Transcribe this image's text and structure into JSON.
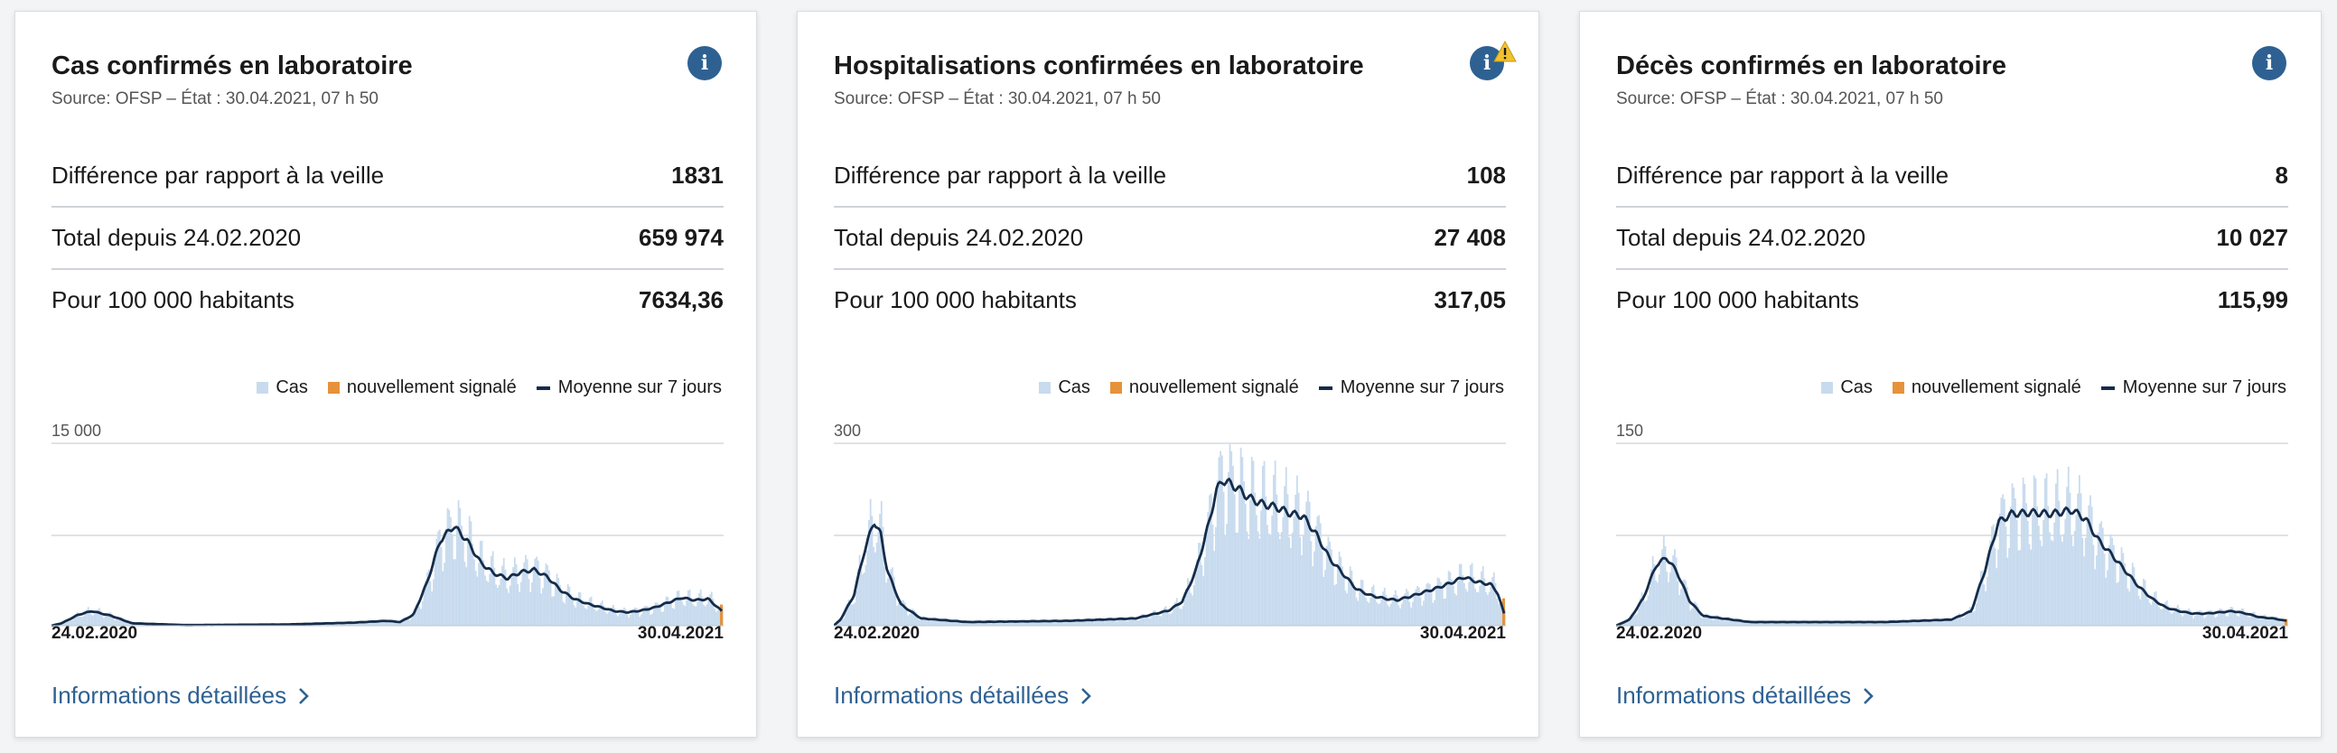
{
  "legend": {
    "cases": "Cas",
    "new": "nouvellement signalé",
    "avg": "Moyenne sur 7 jours"
  },
  "colors": {
    "bars": "#c8dbee",
    "new": "#e6923a",
    "avg": "#152c4a",
    "link": "#2e6192",
    "info": "#2e6192",
    "warning": "#f2c12e"
  },
  "cards": [
    {
      "title": "Cas confirmés en laboratoire",
      "source": "Source: OFSP – État : 30.04.2021, 07 h 50",
      "stats": [
        {
          "label": "Différence par rapport à la veille",
          "value": "1831"
        },
        {
          "label": "Total depuis 24.02.2020",
          "value": "659 974"
        },
        {
          "label": "Pour 100 000 habitants",
          "value": "7634,36"
        }
      ],
      "link": "Informations détaillées",
      "warning": false,
      "info_icon": "info-icon",
      "chart_data": {
        "type": "area",
        "series_names": [
          "Cas",
          "nouvellement signalé",
          "Moyenne sur 7 jours"
        ],
        "ymax_label": "15 000",
        "ylim": [
          0,
          15000
        ],
        "x_start_label": "24.02.2020",
        "x_end_label": "30.04.2021",
        "avg_points": [
          [
            0,
            0
          ],
          [
            0.015,
            200
          ],
          [
            0.04,
            900
          ],
          [
            0.06,
            1200
          ],
          [
            0.09,
            800
          ],
          [
            0.12,
            200
          ],
          [
            0.2,
            50
          ],
          [
            0.35,
            100
          ],
          [
            0.45,
            250
          ],
          [
            0.5,
            400
          ],
          [
            0.52,
            300
          ],
          [
            0.54,
            900
          ],
          [
            0.56,
            3500
          ],
          [
            0.58,
            7000
          ],
          [
            0.6,
            8200
          ],
          [
            0.62,
            7000
          ],
          [
            0.64,
            5200
          ],
          [
            0.66,
            4300
          ],
          [
            0.68,
            3900
          ],
          [
            0.7,
            4400
          ],
          [
            0.72,
            4600
          ],
          [
            0.74,
            4000
          ],
          [
            0.76,
            2900
          ],
          [
            0.78,
            2200
          ],
          [
            0.8,
            1800
          ],
          [
            0.82,
            1500
          ],
          [
            0.84,
            1200
          ],
          [
            0.86,
            1100
          ],
          [
            0.88,
            1250
          ],
          [
            0.9,
            1500
          ],
          [
            0.92,
            1900
          ],
          [
            0.94,
            2300
          ],
          [
            0.96,
            2100
          ],
          [
            0.98,
            2200
          ],
          [
            1,
            1200
          ]
        ]
      }
    },
    {
      "title": "Hospitalisations confirmées en laboratoire",
      "source": "Source: OFSP – État : 30.04.2021, 07 h 50",
      "stats": [
        {
          "label": "Différence par rapport à la veille",
          "value": "108"
        },
        {
          "label": "Total depuis 24.02.2020",
          "value": "27 408"
        },
        {
          "label": "Pour 100 000 habitants",
          "value": "317,05"
        }
      ],
      "link": "Informations détaillées",
      "warning": true,
      "info_icon": "info-icon",
      "chart_data": {
        "type": "area",
        "series_names": [
          "Cas",
          "nouvellement signalé",
          "Moyenne sur 7 jours"
        ],
        "ymax_label": "300",
        "ylim": [
          0,
          300
        ],
        "x_start_label": "24.02.2020",
        "x_end_label": "30.04.2021",
        "avg_points": [
          [
            0,
            0
          ],
          [
            0.01,
            10
          ],
          [
            0.03,
            50
          ],
          [
            0.045,
            120
          ],
          [
            0.06,
            172
          ],
          [
            0.07,
            150
          ],
          [
            0.08,
            90
          ],
          [
            0.1,
            35
          ],
          [
            0.13,
            12
          ],
          [
            0.2,
            6
          ],
          [
            0.35,
            8
          ],
          [
            0.45,
            12
          ],
          [
            0.5,
            25
          ],
          [
            0.52,
            40
          ],
          [
            0.54,
            90
          ],
          [
            0.56,
            170
          ],
          [
            0.57,
            220
          ],
          [
            0.58,
            240
          ],
          [
            0.6,
            228
          ],
          [
            0.62,
            210
          ],
          [
            0.64,
            200
          ],
          [
            0.66,
            195
          ],
          [
            0.68,
            185
          ],
          [
            0.7,
            180
          ],
          [
            0.72,
            150
          ],
          [
            0.74,
            110
          ],
          [
            0.76,
            85
          ],
          [
            0.78,
            60
          ],
          [
            0.8,
            50
          ],
          [
            0.82,
            45
          ],
          [
            0.84,
            42
          ],
          [
            0.86,
            48
          ],
          [
            0.88,
            55
          ],
          [
            0.9,
            62
          ],
          [
            0.92,
            70
          ],
          [
            0.94,
            80
          ],
          [
            0.96,
            72
          ],
          [
            0.98,
            68
          ],
          [
            0.99,
            55
          ],
          [
            1,
            20
          ]
        ]
      }
    },
    {
      "title": "Décès confirmés en laboratoire",
      "source": "Source: OFSP – État : 30.04.2021, 07 h 50",
      "stats": [
        {
          "label": "Différence par rapport à la veille",
          "value": "8"
        },
        {
          "label": "Total depuis 24.02.2020",
          "value": "10 027"
        },
        {
          "label": "Pour 100 000 habitants",
          "value": "115,99"
        }
      ],
      "link": "Informations détaillées",
      "warning": false,
      "info_icon": "info-icon",
      "chart_data": {
        "type": "area",
        "series_names": [
          "Cas",
          "nouvellement signalé",
          "Moyenne sur 7 jours"
        ],
        "ymax_label": "150",
        "ylim": [
          0,
          150
        ],
        "x_start_label": "24.02.2020",
        "x_end_label": "30.04.2021",
        "avg_points": [
          [
            0,
            0
          ],
          [
            0.02,
            5
          ],
          [
            0.04,
            22
          ],
          [
            0.06,
            50
          ],
          [
            0.075,
            56
          ],
          [
            0.09,
            45
          ],
          [
            0.11,
            20
          ],
          [
            0.13,
            8
          ],
          [
            0.2,
            3
          ],
          [
            0.4,
            3
          ],
          [
            0.5,
            5
          ],
          [
            0.53,
            12
          ],
          [
            0.55,
            45
          ],
          [
            0.57,
            85
          ],
          [
            0.59,
            92
          ],
          [
            0.62,
            93
          ],
          [
            0.65,
            92
          ],
          [
            0.68,
            95
          ],
          [
            0.7,
            88
          ],
          [
            0.72,
            70
          ],
          [
            0.74,
            58
          ],
          [
            0.76,
            45
          ],
          [
            0.78,
            32
          ],
          [
            0.8,
            22
          ],
          [
            0.82,
            15
          ],
          [
            0.84,
            12
          ],
          [
            0.86,
            10
          ],
          [
            0.88,
            10
          ],
          [
            0.9,
            11
          ],
          [
            0.92,
            12
          ],
          [
            0.94,
            10
          ],
          [
            0.96,
            7
          ],
          [
            0.98,
            6
          ],
          [
            1,
            4
          ]
        ]
      }
    }
  ]
}
